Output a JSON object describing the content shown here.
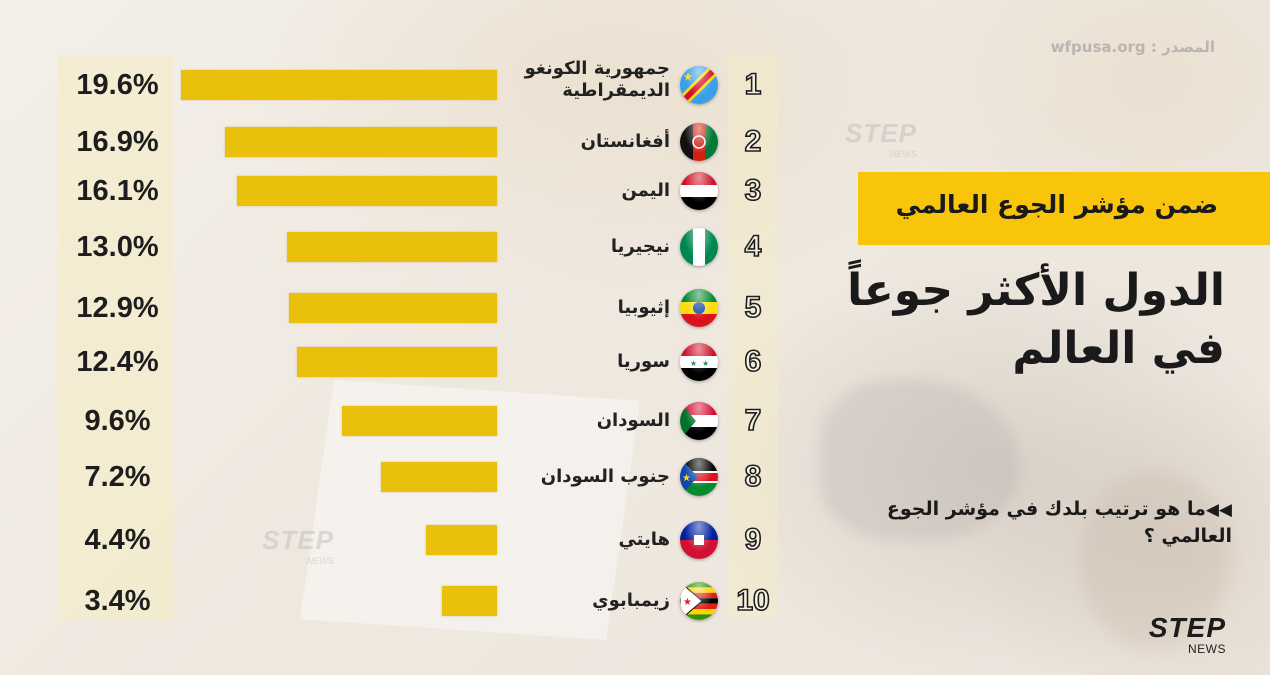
{
  "header": {
    "source": "المصدر : wfpusa.org",
    "banner": "ضمن مؤشر الجوع العالمي",
    "headline_line1": "الدول الأكثر جوعاً",
    "headline_line2": "في العالم",
    "question_arrow": "◀◀",
    "question": "ما هو ترتيب بلدك في مؤشر الجوع العالمي ؟"
  },
  "branding": {
    "logo_main": "STEP",
    "logo_sub": "NEWS",
    "watermark_main": "STEP",
    "watermark_sub": "NEWS"
  },
  "colors": {
    "bar": "#e9c10c",
    "banner": "#f9c50a",
    "text": "#1a1a1a"
  },
  "rows": [
    {
      "rank": "1",
      "country": "جمهورية الكونغو الديمقراطية",
      "value": "19.6%",
      "flag": "drc-flag-icon"
    },
    {
      "rank": "2",
      "country": "أفغانستان",
      "value": "16.9%",
      "flag": "afghanistan-flag-icon"
    },
    {
      "rank": "3",
      "country": "اليمن",
      "value": "16.1%",
      "flag": "yemen-flag-icon"
    },
    {
      "rank": "4",
      "country": "نيجيريا",
      "value": "13.0%",
      "flag": "nigeria-flag-icon"
    },
    {
      "rank": "5",
      "country": "إثيوبيا",
      "value": "12.9%",
      "flag": "ethiopia-flag-icon"
    },
    {
      "rank": "6",
      "country": "سوريا",
      "value": "12.4%",
      "flag": "syria-flag-icon"
    },
    {
      "rank": "7",
      "country": "السودان",
      "value": "9.6%",
      "flag": "sudan-flag-icon"
    },
    {
      "rank": "8",
      "country": "جنوب السودان",
      "value": "7.2%",
      "flag": "south-sudan-flag-icon"
    },
    {
      "rank": "9",
      "country": "هايتي",
      "value": "4.4%",
      "flag": "haiti-flag-icon"
    },
    {
      "rank": "10",
      "country": "زيمبابوي",
      "value": "3.4%",
      "flag": "zimbabwe-flag-icon"
    }
  ],
  "chart_data": {
    "type": "bar",
    "orientation": "horizontal",
    "title": "الدول الأكثر جوعاً في العالم",
    "subtitle": "ضمن مؤشر الجوع العالمي",
    "source": "wfpusa.org",
    "categories": [
      "جمهورية الكونغو الديمقراطية",
      "أفغانستان",
      "اليمن",
      "نيجيريا",
      "إثيوبيا",
      "سوريا",
      "السودان",
      "جنوب السودان",
      "هايتي",
      "زيمبابوي"
    ],
    "values": [
      19.6,
      16.9,
      16.1,
      13.0,
      12.9,
      12.4,
      9.6,
      7.2,
      4.4,
      3.4
    ],
    "value_unit": "%",
    "xlabel": "",
    "ylabel": "",
    "grid": false,
    "legend": null
  }
}
